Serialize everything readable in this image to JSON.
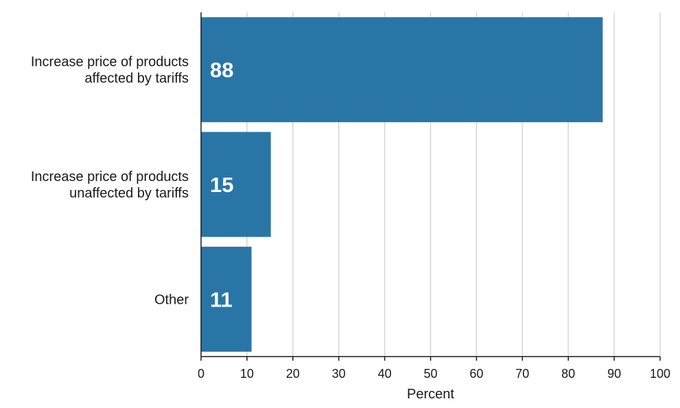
{
  "chart_data": {
    "type": "bar",
    "orientation": "horizontal",
    "categories": [
      [
        "Increase price of products",
        "affected by tariffs"
      ],
      [
        "Increase price of products",
        "unaffected by tariffs"
      ],
      [
        "Other"
      ]
    ],
    "values": [
      87.5,
      15.2,
      11
    ],
    "data_labels": [
      "88",
      "15",
      "11"
    ],
    "xlabel": "Percent",
    "ylabel": "",
    "xlim": [
      0,
      100
    ],
    "xticks": [
      0,
      10,
      20,
      30,
      40,
      50,
      60,
      70,
      80,
      90,
      100
    ],
    "grid": "vertical",
    "legend": "none",
    "colors": {
      "bar": "#2976a6",
      "grid": "#d6d6d6",
      "axis": "#1a1a1a",
      "data_label": "#ffffff"
    }
  }
}
